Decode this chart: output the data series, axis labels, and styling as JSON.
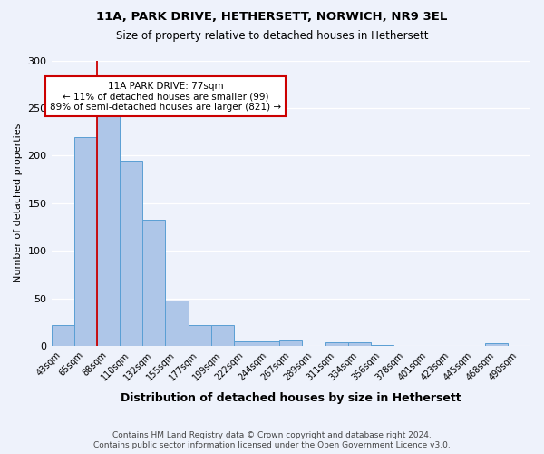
{
  "title1": "11A, PARK DRIVE, HETHERSETT, NORWICH, NR9 3EL",
  "title2": "Size of property relative to detached houses in Hethersett",
  "xlabel": "Distribution of detached houses by size in Hethersett",
  "ylabel": "Number of detached properties",
  "bins": [
    "43sqm",
    "65sqm",
    "88sqm",
    "110sqm",
    "132sqm",
    "155sqm",
    "177sqm",
    "199sqm",
    "222sqm",
    "244sqm",
    "267sqm",
    "289sqm",
    "311sqm",
    "334sqm",
    "356sqm",
    "378sqm",
    "401sqm",
    "423sqm",
    "445sqm",
    "468sqm",
    "490sqm"
  ],
  "values": [
    22,
    219,
    244,
    195,
    133,
    48,
    22,
    22,
    5,
    5,
    7,
    0,
    4,
    4,
    1,
    0,
    0,
    0,
    0,
    3,
    0
  ],
  "bar_color": "#aec6e8",
  "bar_edge_color": "#5a9fd4",
  "vline_x": 1.5,
  "vline_color": "#cc0000",
  "annotation_text": "11A PARK DRIVE: 77sqm\n← 11% of detached houses are smaller (99)\n89% of semi-detached houses are larger (821) →",
  "annotation_box_color": "white",
  "annotation_box_edge_color": "#cc0000",
  "footnote1": "Contains HM Land Registry data © Crown copyright and database right 2024.",
  "footnote2": "Contains public sector information licensed under the Open Government Licence v3.0.",
  "ylim": [
    0,
    300
  ],
  "yticks": [
    0,
    50,
    100,
    150,
    200,
    250,
    300
  ],
  "bg_color": "#eef2fb"
}
